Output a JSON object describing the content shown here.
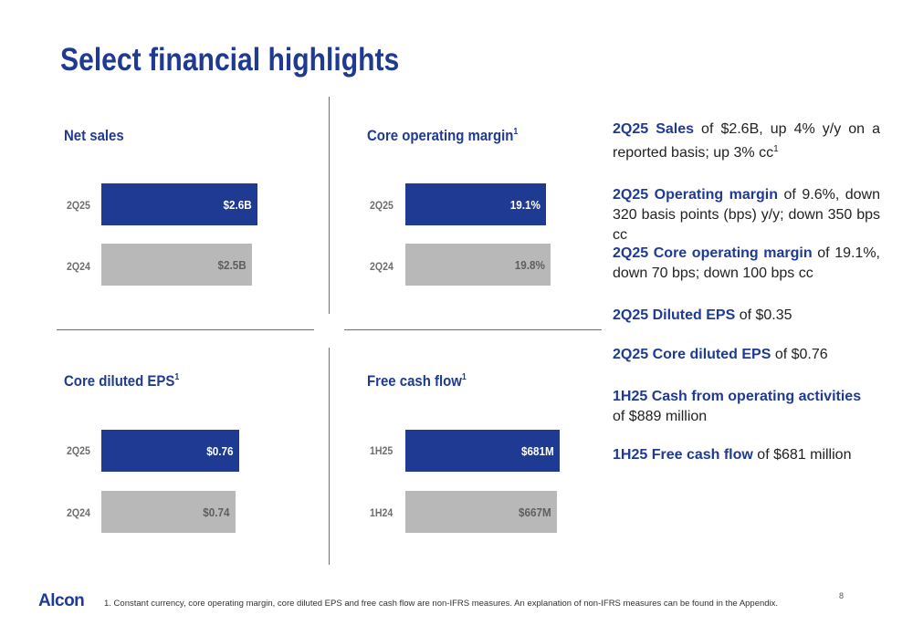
{
  "title": "Select financial highlights",
  "colors": {
    "accent": "#1f3a93",
    "current_bar": "#1f3a93",
    "prior_bar": "#b8b8b8"
  },
  "panels": {
    "net_sales": {
      "title": "Net sales",
      "rows": [
        {
          "label": "2Q25",
          "value_label": "$2.6B",
          "value": 2.6
        },
        {
          "label": "2Q24",
          "value_label": "$2.5B",
          "value": 2.5
        }
      ]
    },
    "core_operating_margin": {
      "title": "Core operating margin",
      "footnote_marker": "1",
      "rows": [
        {
          "label": "2Q25",
          "value_label": "19.1%",
          "value": 19.1
        },
        {
          "label": "2Q24",
          "value_label": "19.8%",
          "value": 19.8
        }
      ]
    },
    "core_diluted_eps": {
      "title": "Core diluted EPS",
      "footnote_marker": "1",
      "rows": [
        {
          "label": "2Q25",
          "value_label": "$0.76",
          "value": 0.76
        },
        {
          "label": "2Q24",
          "value_label": "$0.74",
          "value": 0.74
        }
      ]
    },
    "free_cash_flow": {
      "title": "Free cash flow",
      "footnote_marker": "1",
      "rows": [
        {
          "label": "1H25",
          "value_label": "$681M",
          "value": 681
        },
        {
          "label": "1H24",
          "value_label": "$667M",
          "value": 667
        }
      ]
    }
  },
  "bullets": [
    {
      "highlight": "2Q25 Sales",
      "text": " of $2.6B, up 4% y/y on a reported basis; up 3% cc",
      "footnote_marker": "1"
    },
    {
      "highlight": "2Q25 Operating margin",
      "text": " of 9.6%, down 320 basis points (bps) y/y; down 350 bps cc"
    },
    {
      "highlight": "2Q25 Core operating margin",
      "text": " of 19.1%, down 70 bps; down 100 bps cc"
    },
    {
      "highlight": "2Q25 Diluted EPS",
      "text": " of $0.35"
    },
    {
      "highlight": "2Q25 Core diluted EPS",
      "text": " of $0.76"
    },
    {
      "highlight": "1H25 Cash from operating activities",
      "text": " of $889 million"
    },
    {
      "highlight": "1H25 Free cash flow",
      "text": " of $681 million"
    }
  ],
  "footer": {
    "logo": "Alcon",
    "footnote": "1.  Constant currency, core operating margin, core diluted EPS and free cash flow are non-IFRS measures. An explanation of non-IFRS measures can be found in the Appendix.",
    "page_number": "8"
  }
}
